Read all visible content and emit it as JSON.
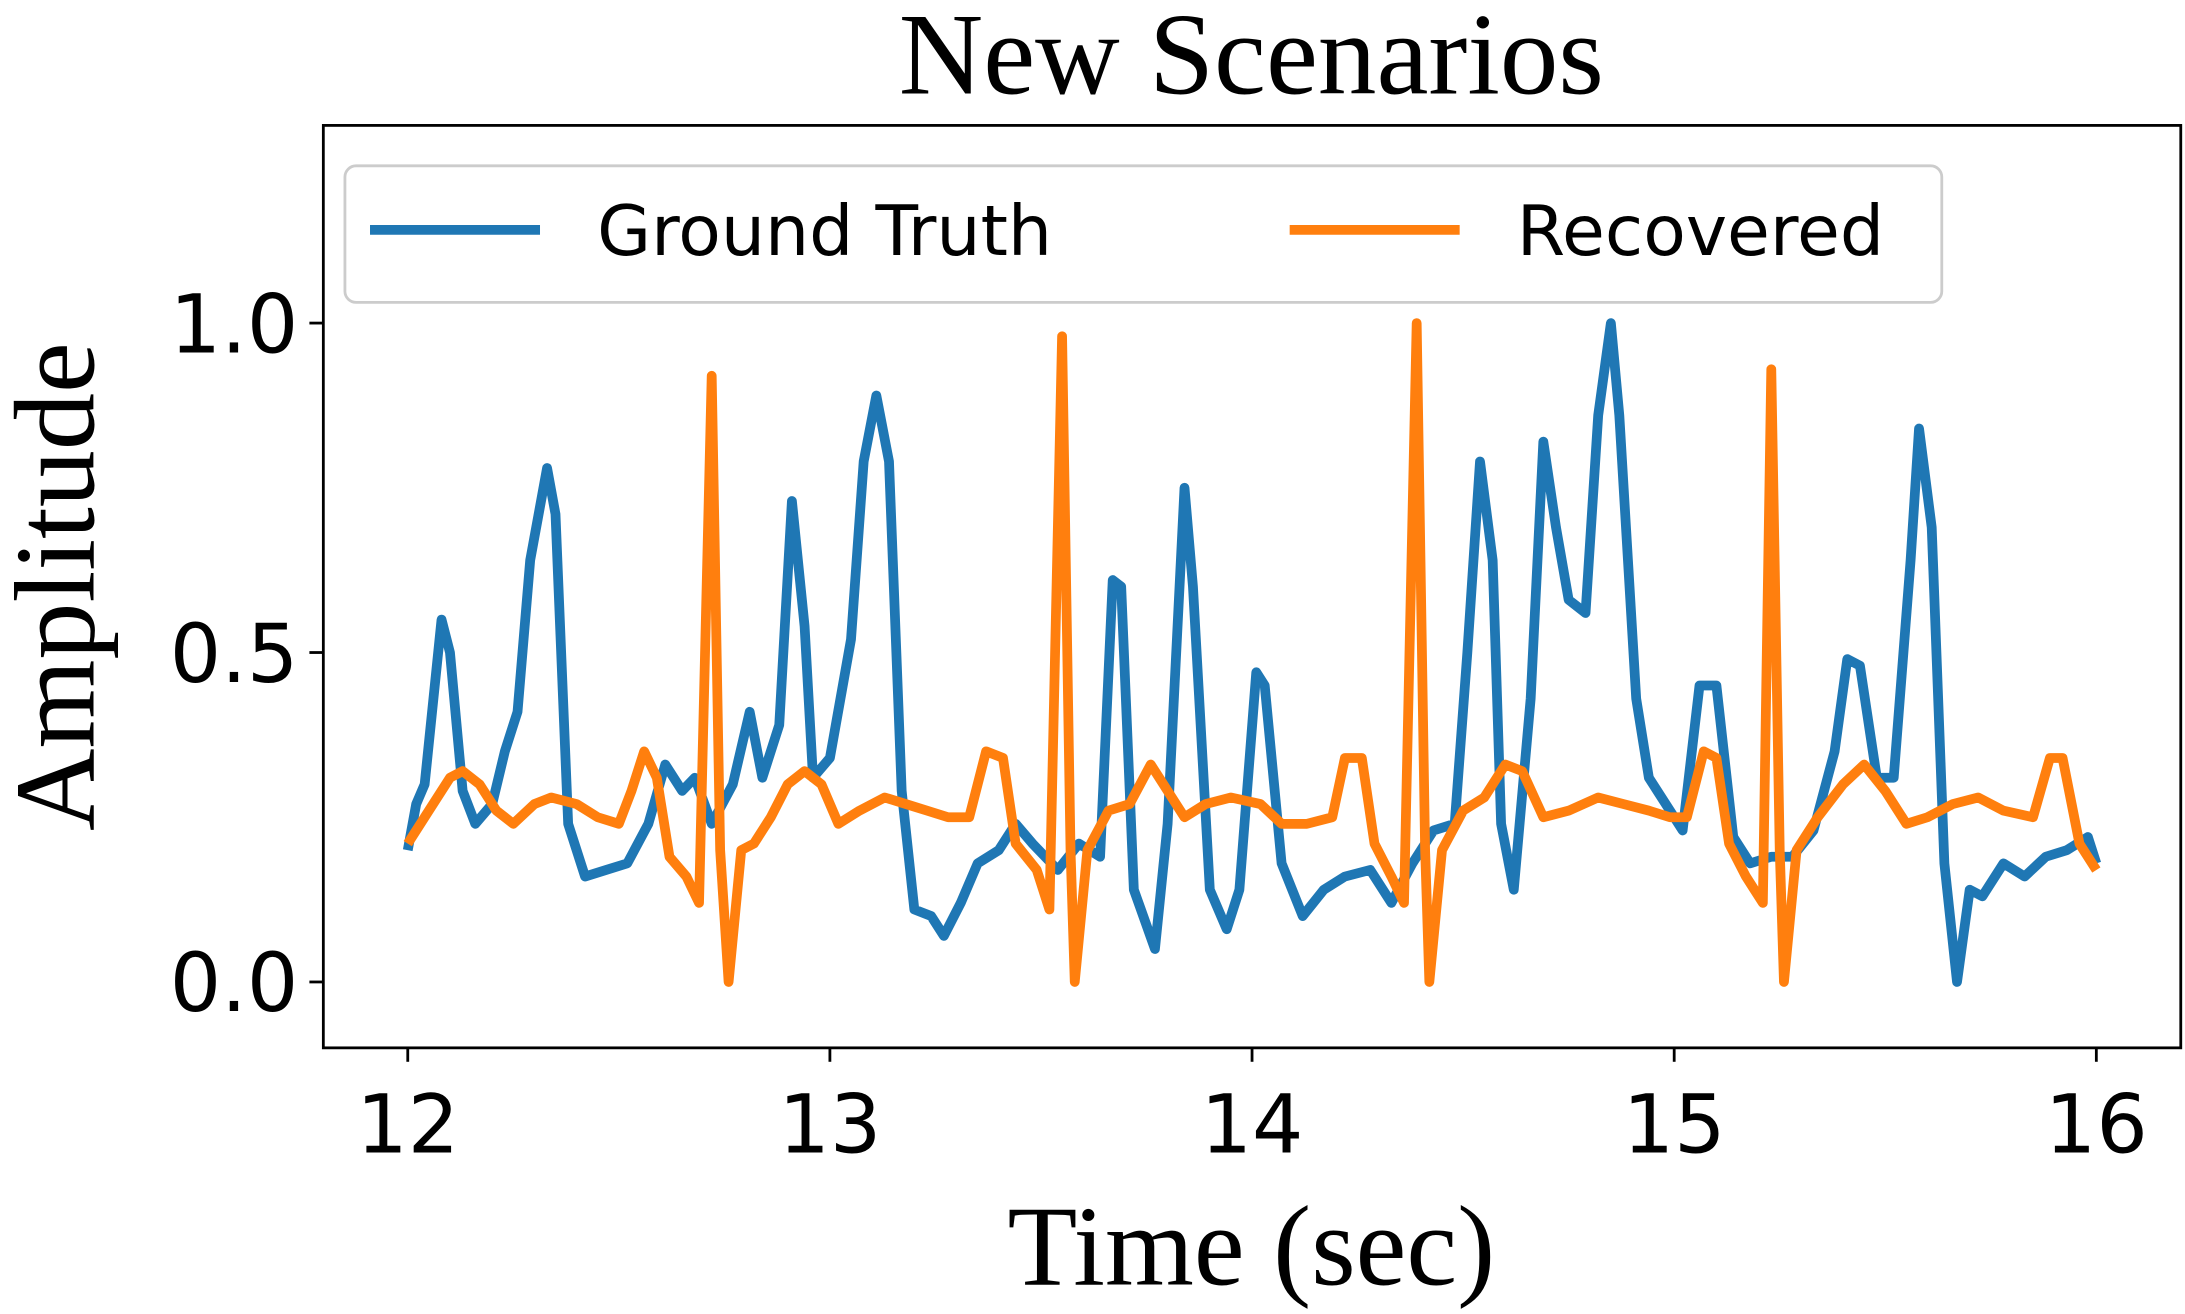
{
  "chart_data": {
    "type": "line",
    "title": "New Scenarios",
    "xlabel": "Time (sec)",
    "ylabel": "Amplitude",
    "xlim": [
      11.8,
      16.2
    ],
    "xticks": [
      12,
      13,
      14,
      15,
      16
    ],
    "ylim": [
      -0.1,
      1.3
    ],
    "yticks": [
      {
        "value": 0,
        "label": "0.0"
      },
      {
        "value": 0.5,
        "label": "0.5"
      },
      {
        "value": 1,
        "label": "1.0"
      }
    ],
    "legend": "upper center",
    "grid": false,
    "series": [
      {
        "name": "Ground Truth",
        "color": "#1f77b4",
        "x": [
          12.0,
          12.02,
          12.04,
          12.08,
          12.1,
          12.13,
          12.16,
          12.2,
          12.23,
          12.26,
          12.29,
          12.33,
          12.35,
          12.38,
          12.42,
          12.47,
          12.52,
          12.57,
          12.61,
          12.65,
          12.68,
          12.72,
          12.77,
          12.81,
          12.84,
          12.88,
          12.91,
          12.94,
          12.96,
          13.0,
          13.05,
          13.08,
          13.11,
          13.14,
          13.17,
          13.2,
          13.24,
          13.27,
          13.31,
          13.35,
          13.4,
          13.44,
          13.48,
          13.54,
          13.59,
          13.64,
          13.67,
          13.69,
          13.72,
          13.77,
          13.8,
          13.84,
          13.86,
          13.9,
          13.94,
          13.97,
          14.01,
          14.03,
          14.07,
          14.12,
          14.17,
          14.22,
          14.28,
          14.33,
          14.38,
          14.43,
          14.48,
          14.51,
          14.54,
          14.57,
          14.59,
          14.62,
          14.66,
          14.69,
          14.72,
          14.75,
          14.79,
          14.82,
          14.85,
          14.87,
          14.91,
          14.94,
          14.99,
          15.02,
          15.06,
          15.1,
          15.14,
          15.18,
          15.23,
          15.28,
          15.33,
          15.38,
          15.41,
          15.44,
          15.48,
          15.52,
          15.56,
          15.58,
          15.61,
          15.64,
          15.67,
          15.7,
          15.73,
          15.78,
          15.83,
          15.88,
          15.93,
          15.98,
          16.0
        ],
        "values": [
          0.2,
          0.27,
          0.3,
          0.55,
          0.5,
          0.29,
          0.24,
          0.27,
          0.35,
          0.41,
          0.64,
          0.78,
          0.71,
          0.24,
          0.16,
          0.17,
          0.18,
          0.24,
          0.33,
          0.29,
          0.31,
          0.24,
          0.3,
          0.41,
          0.31,
          0.39,
          0.73,
          0.54,
          0.31,
          0.34,
          0.52,
          0.79,
          0.89,
          0.79,
          0.29,
          0.11,
          0.1,
          0.07,
          0.12,
          0.18,
          0.2,
          0.24,
          0.21,
          0.17,
          0.21,
          0.19,
          0.61,
          0.6,
          0.14,
          0.05,
          0.24,
          0.75,
          0.6,
          0.14,
          0.08,
          0.14,
          0.47,
          0.45,
          0.18,
          0.1,
          0.14,
          0.16,
          0.17,
          0.12,
          0.18,
          0.23,
          0.24,
          0.5,
          0.79,
          0.64,
          0.24,
          0.14,
          0.43,
          0.82,
          0.69,
          0.58,
          0.56,
          0.86,
          1.0,
          0.86,
          0.43,
          0.31,
          0.26,
          0.23,
          0.45,
          0.45,
          0.22,
          0.18,
          0.19,
          0.19,
          0.23,
          0.35,
          0.49,
          0.48,
          0.31,
          0.31,
          0.64,
          0.84,
          0.69,
          0.18,
          0.0,
          0.14,
          0.13,
          0.18,
          0.16,
          0.19,
          0.2,
          0.22,
          0.18
        ]
      },
      {
        "name": "Recovered",
        "color": "#ff7f0e",
        "x": [
          12.0,
          12.05,
          12.1,
          12.13,
          12.17,
          12.21,
          12.25,
          12.3,
          12.34,
          12.4,
          12.45,
          12.5,
          12.53,
          12.56,
          12.59,
          12.62,
          12.66,
          12.69,
          12.72,
          12.74,
          12.76,
          12.79,
          12.82,
          12.86,
          12.9,
          12.94,
          12.98,
          13.02,
          13.07,
          13.13,
          13.18,
          13.23,
          13.28,
          13.33,
          13.37,
          13.41,
          13.44,
          13.49,
          13.52,
          13.55,
          13.57,
          13.58,
          13.61,
          13.66,
          13.71,
          13.76,
          13.8,
          13.84,
          13.89,
          13.95,
          14.02,
          14.07,
          14.13,
          14.19,
          14.22,
          14.26,
          14.29,
          14.33,
          14.36,
          14.39,
          14.41,
          14.42,
          14.45,
          14.5,
          14.55,
          14.6,
          14.64,
          14.69,
          14.75,
          14.82,
          14.88,
          14.94,
          14.99,
          15.03,
          15.07,
          15.1,
          15.13,
          15.17,
          15.21,
          15.23,
          15.25,
          15.26,
          15.29,
          15.34,
          15.4,
          15.45,
          15.5,
          15.55,
          15.6,
          15.66,
          15.72,
          15.78,
          15.85,
          15.89,
          15.92,
          15.96,
          16.0
        ],
        "values": [
          0.21,
          0.26,
          0.31,
          0.32,
          0.3,
          0.26,
          0.24,
          0.27,
          0.28,
          0.27,
          0.25,
          0.24,
          0.29,
          0.35,
          0.31,
          0.19,
          0.16,
          0.12,
          0.92,
          0.2,
          0.0,
          0.2,
          0.21,
          0.25,
          0.3,
          0.32,
          0.3,
          0.24,
          0.26,
          0.28,
          0.27,
          0.26,
          0.25,
          0.25,
          0.35,
          0.34,
          0.21,
          0.17,
          0.11,
          0.98,
          0.2,
          0.0,
          0.2,
          0.26,
          0.27,
          0.33,
          0.29,
          0.25,
          0.27,
          0.28,
          0.27,
          0.24,
          0.24,
          0.25,
          0.34,
          0.34,
          0.21,
          0.16,
          0.12,
          1.0,
          0.2,
          0.0,
          0.2,
          0.26,
          0.28,
          0.33,
          0.32,
          0.25,
          0.26,
          0.28,
          0.27,
          0.26,
          0.25,
          0.25,
          0.35,
          0.34,
          0.21,
          0.16,
          0.12,
          0.93,
          0.2,
          0.0,
          0.2,
          0.25,
          0.3,
          0.33,
          0.29,
          0.24,
          0.25,
          0.27,
          0.28,
          0.26,
          0.25,
          0.34,
          0.34,
          0.21,
          0.17
        ]
      }
    ]
  }
}
